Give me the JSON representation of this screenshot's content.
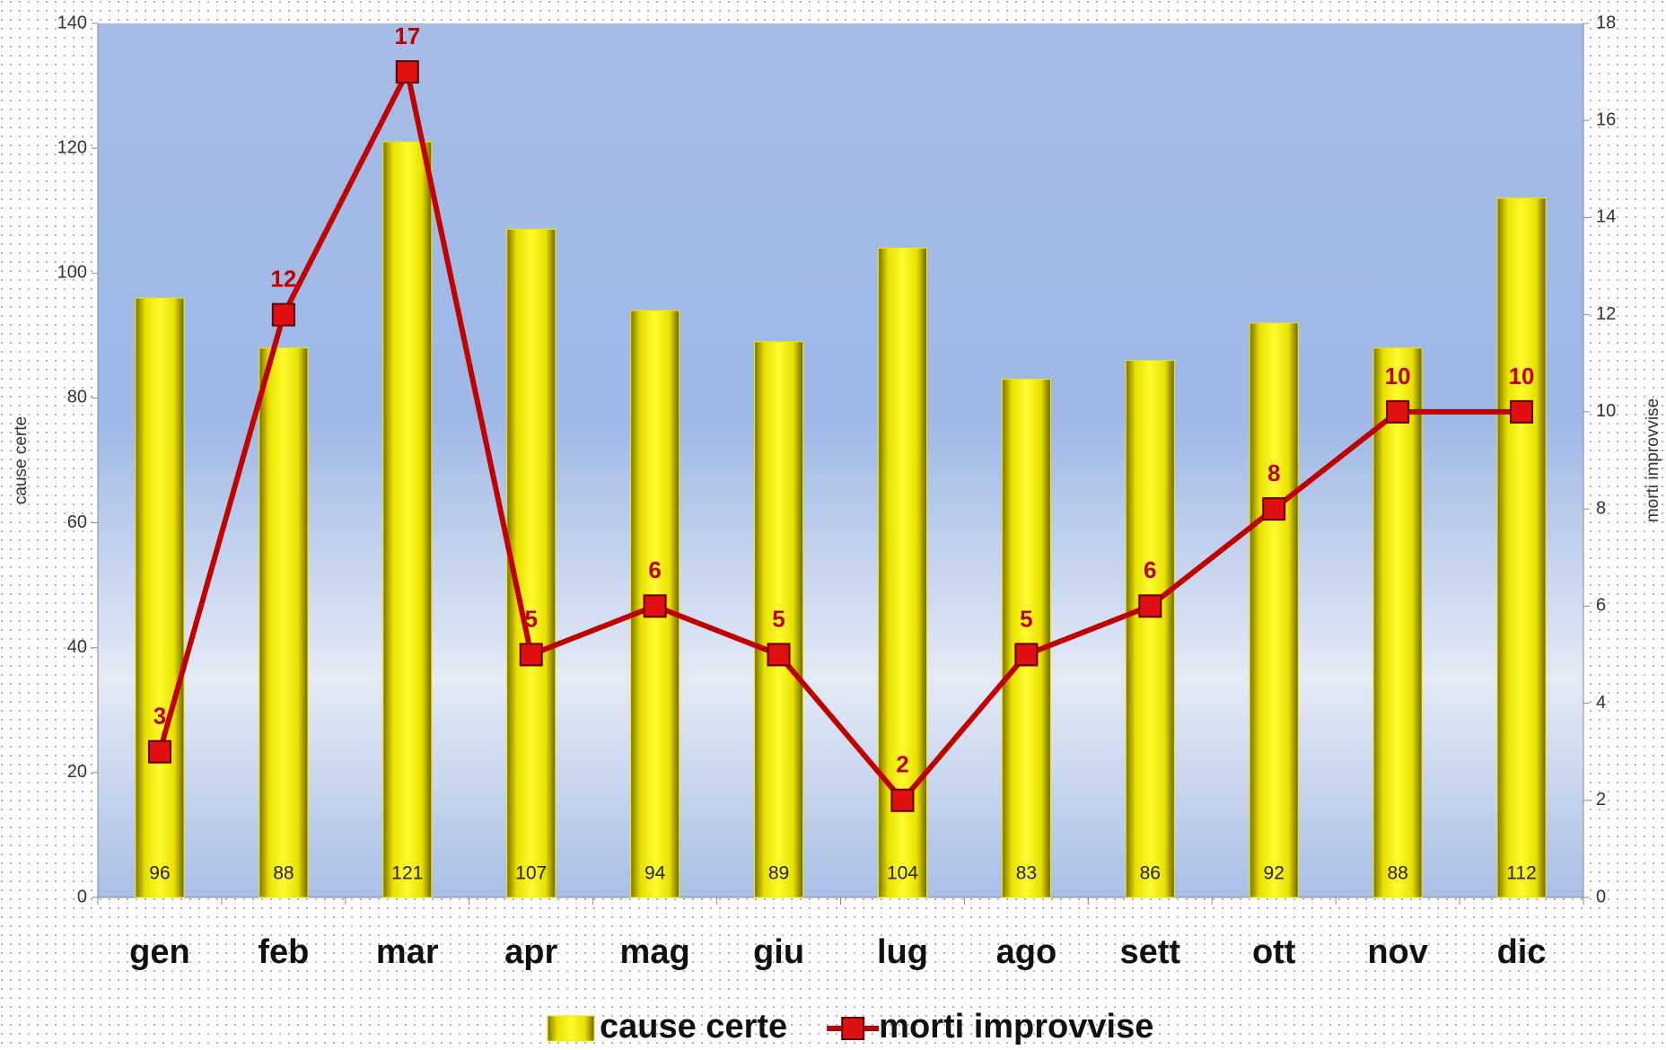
{
  "chart_data": {
    "type": "bar",
    "categories": [
      "gen",
      "feb",
      "mar",
      "apr",
      "mag",
      "giu",
      "lug",
      "ago",
      "sett",
      "ott",
      "nov",
      "dic"
    ],
    "series": [
      {
        "name": "cause certe",
        "type": "bar",
        "color": "#f2ea00",
        "axis": "y",
        "values": [
          96,
          88,
          121,
          107,
          94,
          89,
          104,
          83,
          86,
          92,
          88,
          112
        ]
      },
      {
        "name": "morti improvvise",
        "type": "line",
        "color": "#c00000",
        "axis": "y2",
        "values": [
          3,
          12,
          17,
          5,
          6,
          5,
          2,
          5,
          6,
          8,
          10,
          10
        ]
      }
    ],
    "ylabel": "cause certe",
    "y2label": "morti improvvise",
    "ylim": [
      0,
      140
    ],
    "yticks": [
      0,
      20,
      40,
      60,
      80,
      100,
      120,
      140
    ],
    "y2lim": [
      0,
      18
    ],
    "y2ticks": [
      0,
      2,
      4,
      6,
      8,
      10,
      12,
      14,
      16,
      18
    ],
    "legend": "bottom"
  }
}
